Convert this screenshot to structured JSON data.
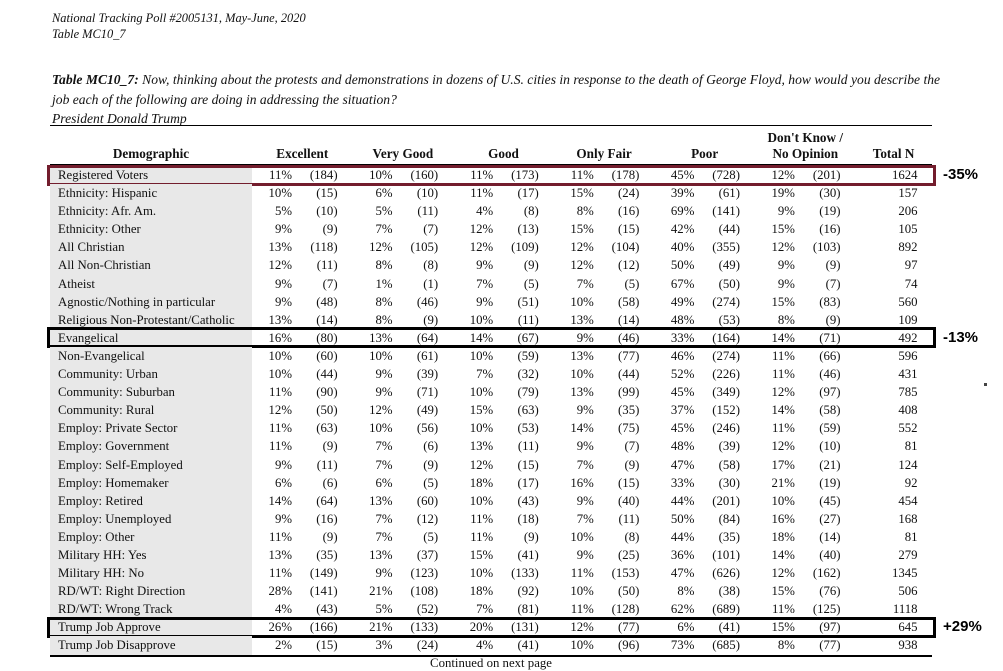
{
  "doc_header": {
    "line1": "National Tracking Poll #2005131, May-June, 2020",
    "line2": "Table MC10_7"
  },
  "title": {
    "label": "Table MC10_7:",
    "question": "Now, thinking about the protests and demonstrations in dozens of U.S. cities in response to the death of George Floyd, how would you describe the job each of the following are doing in addressing the situation?",
    "subject": "President Donald Trump"
  },
  "colors": {
    "maroon_box": "#731d2d",
    "black_box": "#000000",
    "label_column_bg": "#e8e8e8"
  },
  "table": {
    "demographic_header": "Demographic",
    "total_header": "Total N",
    "category_headers": [
      {
        "line1": "",
        "line2": "Excellent"
      },
      {
        "line1": "",
        "line2": "Very Good"
      },
      {
        "line1": "",
        "line2": "Good"
      },
      {
        "line1": "",
        "line2": "Only Fair"
      },
      {
        "line1": "",
        "line2": "Poor"
      },
      {
        "line1": "Don't Know /",
        "line2": "No Opinion"
      }
    ],
    "rows": [
      {
        "label": "Registered Voters",
        "cells": [
          "11%",
          "(184)",
          "10%",
          "(160)",
          "11%",
          "(173)",
          "11%",
          "(178)",
          "45%",
          "(728)",
          "12%",
          "(201)"
        ],
        "total": "1624",
        "highlight": "maroon",
        "annotation": "-35%"
      },
      {
        "label": "Ethnicity: Hispanic",
        "cells": [
          "10%",
          "(15)",
          "6%",
          "(10)",
          "11%",
          "(17)",
          "15%",
          "(24)",
          "39%",
          "(61)",
          "19%",
          "(30)"
        ],
        "total": "157",
        "highlight": null,
        "annotation": null
      },
      {
        "label": "Ethnicity: Afr. Am.",
        "cells": [
          "5%",
          "(10)",
          "5%",
          "(11)",
          "4%",
          "(8)",
          "8%",
          "(16)",
          "69%",
          "(141)",
          "9%",
          "(19)"
        ],
        "total": "206",
        "highlight": null,
        "annotation": null
      },
      {
        "label": "Ethnicity: Other",
        "cells": [
          "9%",
          "(9)",
          "7%",
          "(7)",
          "12%",
          "(13)",
          "15%",
          "(15)",
          "42%",
          "(44)",
          "15%",
          "(16)"
        ],
        "total": "105",
        "highlight": null,
        "annotation": null
      },
      {
        "label": "All Christian",
        "cells": [
          "13%",
          "(118)",
          "12%",
          "(105)",
          "12%",
          "(109)",
          "12%",
          "(104)",
          "40%",
          "(355)",
          "12%",
          "(103)"
        ],
        "total": "892",
        "highlight": null,
        "annotation": null
      },
      {
        "label": "All Non-Christian",
        "cells": [
          "12%",
          "(11)",
          "8%",
          "(8)",
          "9%",
          "(9)",
          "12%",
          "(12)",
          "50%",
          "(49)",
          "9%",
          "(9)"
        ],
        "total": "97",
        "highlight": null,
        "annotation": null
      },
      {
        "label": "Atheist",
        "cells": [
          "9%",
          "(7)",
          "1%",
          "(1)",
          "7%",
          "(5)",
          "7%",
          "(5)",
          "67%",
          "(50)",
          "9%",
          "(7)"
        ],
        "total": "74",
        "highlight": null,
        "annotation": null
      },
      {
        "label": "Agnostic/Nothing in particular",
        "cells": [
          "9%",
          "(48)",
          "8%",
          "(46)",
          "9%",
          "(51)",
          "10%",
          "(58)",
          "49%",
          "(274)",
          "15%",
          "(83)"
        ],
        "total": "560",
        "highlight": null,
        "annotation": null
      },
      {
        "label": "Religious Non-Protestant/Catholic",
        "cells": [
          "13%",
          "(14)",
          "8%",
          "(9)",
          "10%",
          "(11)",
          "13%",
          "(14)",
          "48%",
          "(53)",
          "8%",
          "(9)"
        ],
        "total": "109",
        "highlight": null,
        "annotation": null
      },
      {
        "label": "Evangelical",
        "cells": [
          "16%",
          "(80)",
          "13%",
          "(64)",
          "14%",
          "(67)",
          "9%",
          "(46)",
          "33%",
          "(164)",
          "14%",
          "(71)"
        ],
        "total": "492",
        "highlight": "black",
        "annotation": "-13%"
      },
      {
        "label": "Non-Evangelical",
        "cells": [
          "10%",
          "(60)",
          "10%",
          "(61)",
          "10%",
          "(59)",
          "13%",
          "(77)",
          "46%",
          "(274)",
          "11%",
          "(66)"
        ],
        "total": "596",
        "highlight": null,
        "annotation": null
      },
      {
        "label": "Community: Urban",
        "cells": [
          "10%",
          "(44)",
          "9%",
          "(39)",
          "7%",
          "(32)",
          "10%",
          "(44)",
          "52%",
          "(226)",
          "11%",
          "(46)"
        ],
        "total": "431",
        "highlight": null,
        "annotation": null
      },
      {
        "label": "Community: Suburban",
        "cells": [
          "11%",
          "(90)",
          "9%",
          "(71)",
          "10%",
          "(79)",
          "13%",
          "(99)",
          "45%",
          "(349)",
          "12%",
          "(97)"
        ],
        "total": "785",
        "highlight": null,
        "annotation": null
      },
      {
        "label": "Community: Rural",
        "cells": [
          "12%",
          "(50)",
          "12%",
          "(49)",
          "15%",
          "(63)",
          "9%",
          "(35)",
          "37%",
          "(152)",
          "14%",
          "(58)"
        ],
        "total": "408",
        "highlight": null,
        "annotation": null
      },
      {
        "label": "Employ: Private Sector",
        "cells": [
          "11%",
          "(63)",
          "10%",
          "(56)",
          "10%",
          "(53)",
          "14%",
          "(75)",
          "45%",
          "(246)",
          "11%",
          "(59)"
        ],
        "total": "552",
        "highlight": null,
        "annotation": null
      },
      {
        "label": "Employ: Government",
        "cells": [
          "11%",
          "(9)",
          "7%",
          "(6)",
          "13%",
          "(11)",
          "9%",
          "(7)",
          "48%",
          "(39)",
          "12%",
          "(10)"
        ],
        "total": "81",
        "highlight": null,
        "annotation": null
      },
      {
        "label": "Employ: Self-Employed",
        "cells": [
          "9%",
          "(11)",
          "7%",
          "(9)",
          "12%",
          "(15)",
          "7%",
          "(9)",
          "47%",
          "(58)",
          "17%",
          "(21)"
        ],
        "total": "124",
        "highlight": null,
        "annotation": null
      },
      {
        "label": "Employ: Homemaker",
        "cells": [
          "6%",
          "(6)",
          "6%",
          "(5)",
          "18%",
          "(17)",
          "16%",
          "(15)",
          "33%",
          "(30)",
          "21%",
          "(19)"
        ],
        "total": "92",
        "highlight": null,
        "annotation": null
      },
      {
        "label": "Employ: Retired",
        "cells": [
          "14%",
          "(64)",
          "13%",
          "(60)",
          "10%",
          "(43)",
          "9%",
          "(40)",
          "44%",
          "(201)",
          "10%",
          "(45)"
        ],
        "total": "454",
        "highlight": null,
        "annotation": null
      },
      {
        "label": "Employ: Unemployed",
        "cells": [
          "9%",
          "(16)",
          "7%",
          "(12)",
          "11%",
          "(18)",
          "7%",
          "(11)",
          "50%",
          "(84)",
          "16%",
          "(27)"
        ],
        "total": "168",
        "highlight": null,
        "annotation": null
      },
      {
        "label": "Employ: Other",
        "cells": [
          "11%",
          "(9)",
          "7%",
          "(5)",
          "11%",
          "(9)",
          "10%",
          "(8)",
          "44%",
          "(35)",
          "18%",
          "(14)"
        ],
        "total": "81",
        "highlight": null,
        "annotation": null
      },
      {
        "label": "Military HH: Yes",
        "cells": [
          "13%",
          "(35)",
          "13%",
          "(37)",
          "15%",
          "(41)",
          "9%",
          "(25)",
          "36%",
          "(101)",
          "14%",
          "(40)"
        ],
        "total": "279",
        "highlight": null,
        "annotation": null
      },
      {
        "label": "Military HH: No",
        "cells": [
          "11%",
          "(149)",
          "9%",
          "(123)",
          "10%",
          "(133)",
          "11%",
          "(153)",
          "47%",
          "(626)",
          "12%",
          "(162)"
        ],
        "total": "1345",
        "highlight": null,
        "annotation": null
      },
      {
        "label": "RD/WT: Right Direction",
        "cells": [
          "28%",
          "(141)",
          "21%",
          "(108)",
          "18%",
          "(92)",
          "10%",
          "(50)",
          "8%",
          "(38)",
          "15%",
          "(76)"
        ],
        "total": "506",
        "highlight": null,
        "annotation": null
      },
      {
        "label": "RD/WT: Wrong Track",
        "cells": [
          "4%",
          "(43)",
          "5%",
          "(52)",
          "7%",
          "(81)",
          "11%",
          "(128)",
          "62%",
          "(689)",
          "11%",
          "(125)"
        ],
        "total": "1118",
        "highlight": null,
        "annotation": null
      },
      {
        "label": "Trump Job Approve",
        "cells": [
          "26%",
          "(166)",
          "21%",
          "(133)",
          "20%",
          "(131)",
          "12%",
          "(77)",
          "6%",
          "(41)",
          "15%",
          "(97)"
        ],
        "total": "645",
        "highlight": "black",
        "annotation": "+29%"
      },
      {
        "label": "Trump Job Disapprove",
        "cells": [
          "2%",
          "(15)",
          "3%",
          "(24)",
          "4%",
          "(41)",
          "10%",
          "(96)",
          "73%",
          "(685)",
          "8%",
          "(77)"
        ],
        "total": "938",
        "highlight": null,
        "annotation": null
      }
    ]
  },
  "footer": "Continued on next page"
}
